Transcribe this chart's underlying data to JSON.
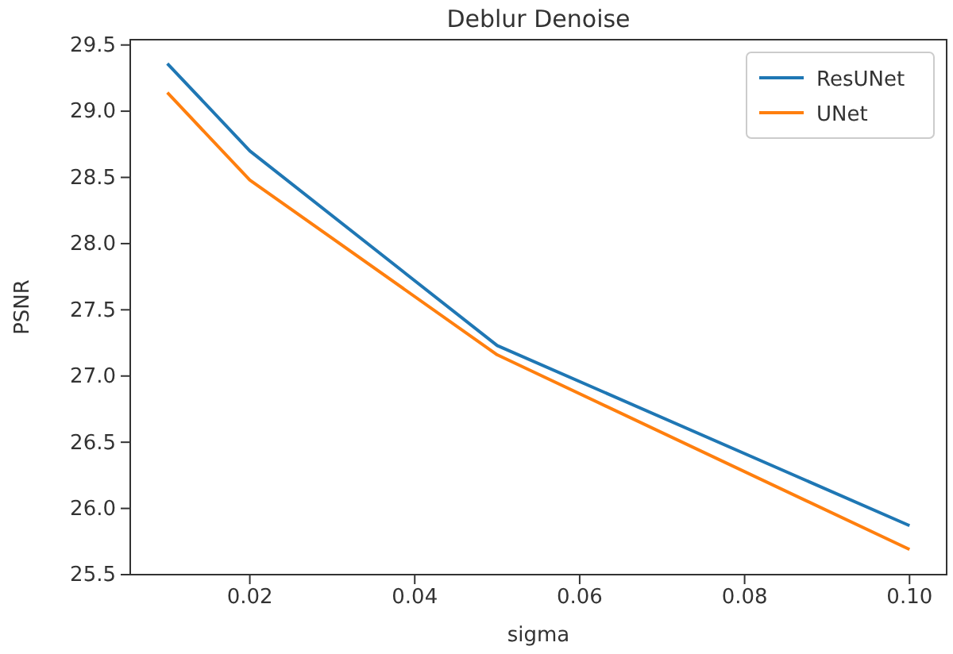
{
  "chart_data": {
    "type": "line",
    "title": "Deblur Denoise",
    "xlabel": "sigma",
    "ylabel": "PSNR",
    "x": [
      0.01,
      0.02,
      0.05,
      0.1
    ],
    "series": [
      {
        "name": "ResUNet",
        "color": "#1f77b4",
        "values": [
          29.36,
          28.7,
          27.23,
          25.87
        ]
      },
      {
        "name": "UNet",
        "color": "#ff7f0e",
        "values": [
          29.14,
          28.48,
          27.16,
          25.69
        ]
      }
    ],
    "xlim": [
      0.0055,
      0.1045
    ],
    "ylim": [
      25.5,
      29.54
    ],
    "xticks": [
      {
        "value": 0.02,
        "label": "0.02"
      },
      {
        "value": 0.04,
        "label": "0.04"
      },
      {
        "value": 0.06,
        "label": "0.06"
      },
      {
        "value": 0.08,
        "label": "0.08"
      },
      {
        "value": 0.1,
        "label": "0.10"
      }
    ],
    "yticks": [
      {
        "value": 25.5,
        "label": "25.5"
      },
      {
        "value": 26,
        "label": "26.0"
      },
      {
        "value": 26.5,
        "label": "26.5"
      },
      {
        "value": 27,
        "label": "27.0"
      },
      {
        "value": 27.5,
        "label": "27.5"
      },
      {
        "value": 28,
        "label": "28.0"
      },
      {
        "value": 28.5,
        "label": "28.5"
      },
      {
        "value": 29,
        "label": "29.0"
      },
      {
        "value": 29.5,
        "label": "29.5"
      }
    ],
    "legend": "top right",
    "marker": "none",
    "line_style": "solid",
    "grid": false
  }
}
